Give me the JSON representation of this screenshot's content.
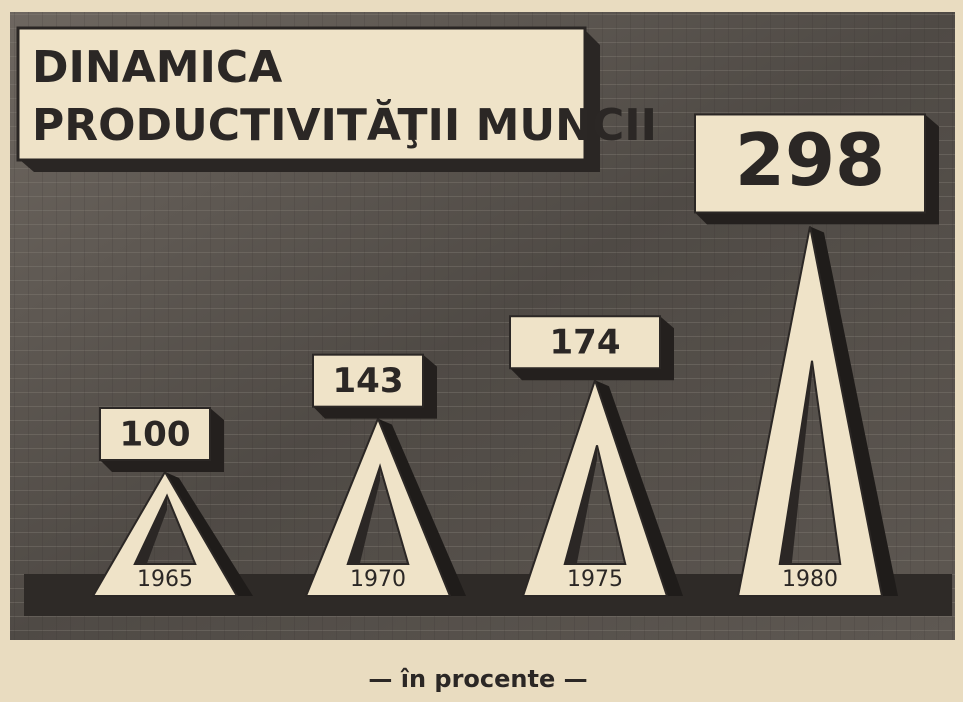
{
  "chart_data": {
    "type": "bar",
    "title": [
      "DINAMICA",
      "PRODUCTIVITĂŢII MUNCII"
    ],
    "subtitle": "— în procente —",
    "categories": [
      "1965",
      "1970",
      "1975",
      "1980"
    ],
    "values": [
      100,
      143,
      174,
      298
    ],
    "color": "#efe3c8"
  }
}
